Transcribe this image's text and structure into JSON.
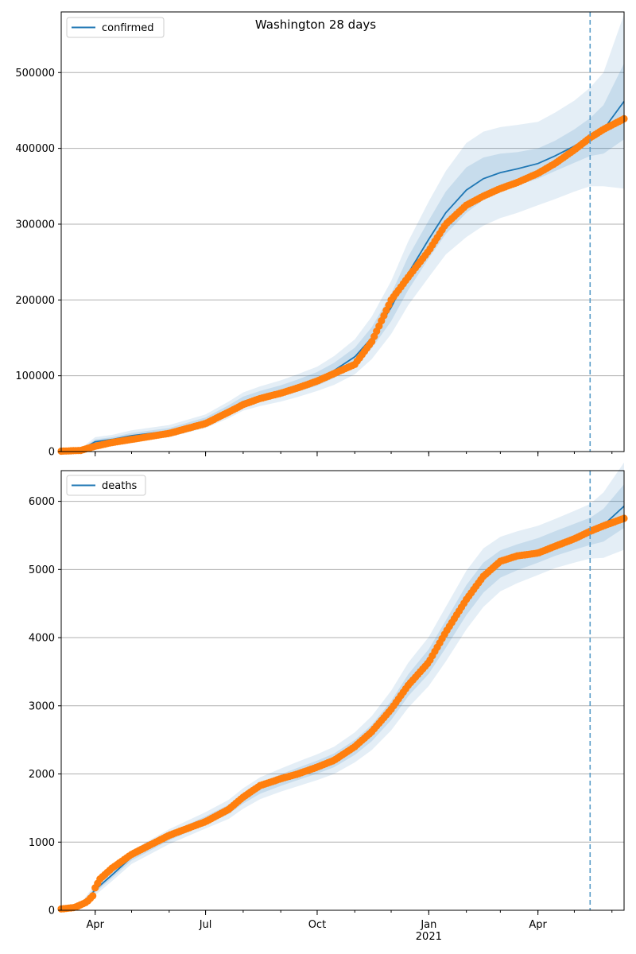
{
  "chart_data": [
    {
      "type": "line",
      "title": "Washington 28 days",
      "ylim": [
        0,
        580000
      ],
      "yticks": [
        0,
        100000,
        200000,
        300000,
        400000,
        500000
      ],
      "grid": "horizontal",
      "legend": {
        "placement": "top-left",
        "label": "confirmed"
      },
      "forecast_start": "2021-05-14",
      "x_range": [
        "2020-03-04",
        "2021-06-11"
      ],
      "xticks": [
        {
          "date": "2020-04-01",
          "label": "Apr",
          "sublabel": ""
        },
        {
          "date": "2020-07-01",
          "label": "Jul",
          "sublabel": ""
        },
        {
          "date": "2020-10-01",
          "label": "Oct",
          "sublabel": ""
        },
        {
          "date": "2021-01-01",
          "label": "Jan",
          "sublabel": "2021"
        },
        {
          "date": "2021-04-01",
          "label": "Apr",
          "sublabel": ""
        }
      ],
      "model_series": {
        "name": "confirmed",
        "color": "#1f77b4",
        "x": [
          "2020-03-04",
          "2020-03-20",
          "2020-04-01",
          "2020-04-15",
          "2020-05-01",
          "2020-06-01",
          "2020-07-01",
          "2020-07-20",
          "2020-08-01",
          "2020-08-15",
          "2020-09-01",
          "2020-09-15",
          "2020-10-01",
          "2020-10-15",
          "2020-11-01",
          "2020-11-15",
          "2020-12-01",
          "2020-12-15",
          "2021-01-01",
          "2021-01-15",
          "2021-02-01",
          "2021-02-15",
          "2021-03-01",
          "2021-03-15",
          "2021-04-01",
          "2021-04-15",
          "2021-05-01",
          "2021-05-14",
          "2021-05-25",
          "2021-06-11"
        ],
        "y": [
          1000,
          2000,
          13000,
          16000,
          21000,
          27000,
          40000,
          55000,
          66000,
          73000,
          80000,
          87000,
          96000,
          107000,
          125000,
          150000,
          190000,
          235000,
          280000,
          315000,
          345000,
          360000,
          368000,
          373000,
          380000,
          390000,
          403000,
          415000,
          425000,
          462000
        ],
        "band_inner": [
          500,
          1000,
          3000,
          3000,
          3500,
          4000,
          5000,
          6000,
          6500,
          7000,
          7500,
          8000,
          9000,
          10000,
          12000,
          14000,
          18000,
          22000,
          25000,
          28000,
          30000,
          28000,
          25000,
          22000,
          20000,
          20000,
          22000,
          25000,
          32000,
          50000
        ],
        "band_outer": [
          1000,
          2000,
          6000,
          6000,
          7000,
          8000,
          9000,
          11000,
          12000,
          13000,
          14000,
          15000,
          16000,
          19000,
          23000,
          28000,
          35000,
          42000,
          50000,
          55000,
          62000,
          62000,
          60000,
          58000,
          55000,
          57000,
          60000,
          65000,
          75000,
          115000
        ]
      },
      "observed_series": {
        "color": "#ff7f0e",
        "x": [
          "2020-03-04",
          "2020-03-20",
          "2020-04-01",
          "2020-04-15",
          "2020-05-01",
          "2020-06-01",
          "2020-07-01",
          "2020-07-20",
          "2020-08-01",
          "2020-08-15",
          "2020-09-01",
          "2020-09-15",
          "2020-10-01",
          "2020-10-15",
          "2020-11-01",
          "2020-11-15",
          "2020-12-01",
          "2020-12-15",
          "2021-01-01",
          "2021-01-15",
          "2021-02-01",
          "2021-02-15",
          "2021-03-01",
          "2021-03-15",
          "2021-04-01",
          "2021-04-15",
          "2021-05-01",
          "2021-05-14",
          "2021-05-25",
          "2021-06-11"
        ],
        "y": [
          500,
          1500,
          7000,
          12000,
          16000,
          24000,
          37000,
          52000,
          62000,
          70000,
          77000,
          84000,
          93000,
          103000,
          115000,
          145000,
          200000,
          230000,
          265000,
          300000,
          325000,
          337000,
          347000,
          355000,
          367000,
          380000,
          398000,
          414000,
          425000,
          439000
        ]
      }
    },
    {
      "type": "line",
      "title": "",
      "ylim": [
        0,
        6450
      ],
      "yticks": [
        0,
        1000,
        2000,
        3000,
        4000,
        5000,
        6000
      ],
      "grid": "horizontal",
      "legend": {
        "placement": "top-left",
        "label": "deaths"
      },
      "forecast_start": "2021-05-14",
      "x_range": [
        "2020-03-04",
        "2021-06-11"
      ],
      "xticks": [
        {
          "date": "2020-04-01",
          "label": "Apr",
          "sublabel": ""
        },
        {
          "date": "2020-07-01",
          "label": "Jul",
          "sublabel": ""
        },
        {
          "date": "2020-10-01",
          "label": "Oct",
          "sublabel": ""
        },
        {
          "date": "2021-01-01",
          "label": "Jan",
          "sublabel": "2021"
        },
        {
          "date": "2021-04-01",
          "label": "Apr",
          "sublabel": ""
        }
      ],
      "model_series": {
        "name": "deaths",
        "color": "#1f77b4",
        "x": [
          "2020-03-04",
          "2020-03-20",
          "2020-04-01",
          "2020-04-15",
          "2020-05-01",
          "2020-06-01",
          "2020-07-01",
          "2020-07-20",
          "2020-08-01",
          "2020-08-15",
          "2020-09-01",
          "2020-09-15",
          "2020-10-01",
          "2020-10-15",
          "2020-11-01",
          "2020-11-15",
          "2020-12-01",
          "2020-12-15",
          "2021-01-01",
          "2021-01-15",
          "2021-02-01",
          "2021-02-15",
          "2021-03-01",
          "2021-03-15",
          "2021-04-01",
          "2021-04-15",
          "2021-05-01",
          "2021-05-14",
          "2021-05-25",
          "2021-06-11"
        ],
        "y": [
          20,
          60,
          300,
          520,
          780,
          1080,
          1320,
          1480,
          1640,
          1790,
          1910,
          2000,
          2100,
          2200,
          2390,
          2600,
          2930,
          3300,
          3650,
          4050,
          4550,
          4880,
          5080,
          5180,
          5280,
          5380,
          5480,
          5560,
          5650,
          5930
        ],
        "band_inner": [
          10,
          20,
          40,
          45,
          50,
          55,
          60,
          70,
          75,
          80,
          85,
          90,
          95,
          100,
          110,
          120,
          140,
          160,
          180,
          200,
          220,
          220,
          200,
          190,
          180,
          180,
          190,
          200,
          240,
          320
        ],
        "band_outer": [
          20,
          40,
          80,
          90,
          100,
          110,
          120,
          140,
          150,
          160,
          170,
          180,
          190,
          200,
          220,
          250,
          290,
          330,
          360,
          400,
          430,
          430,
          400,
          380,
          360,
          360,
          380,
          400,
          480,
          640
        ]
      },
      "observed_series": {
        "color": "#ff7f0e",
        "x": [
          "2020-03-04",
          "2020-03-15",
          "2020-03-25",
          "2020-03-31",
          "2020-04-01",
          "2020-04-05",
          "2020-04-15",
          "2020-05-01",
          "2020-06-01",
          "2020-07-01",
          "2020-07-20",
          "2020-08-01",
          "2020-08-15",
          "2020-09-01",
          "2020-09-15",
          "2020-10-01",
          "2020-10-15",
          "2020-11-01",
          "2020-11-15",
          "2020-12-01",
          "2020-12-15",
          "2021-01-01",
          "2021-01-15",
          "2021-02-01",
          "2021-02-15",
          "2021-03-01",
          "2021-03-15",
          "2021-04-01",
          "2021-04-15",
          "2021-05-01",
          "2021-05-14",
          "2021-05-25",
          "2021-06-11"
        ],
        "y": [
          20,
          40,
          120,
          230,
          330,
          460,
          620,
          820,
          1100,
          1300,
          1480,
          1660,
          1830,
          1930,
          2000,
          2100,
          2200,
          2400,
          2620,
          2950,
          3300,
          3640,
          4080,
          4560,
          4900,
          5120,
          5200,
          5240,
          5340,
          5450,
          5560,
          5640,
          5750
        ]
      }
    }
  ]
}
